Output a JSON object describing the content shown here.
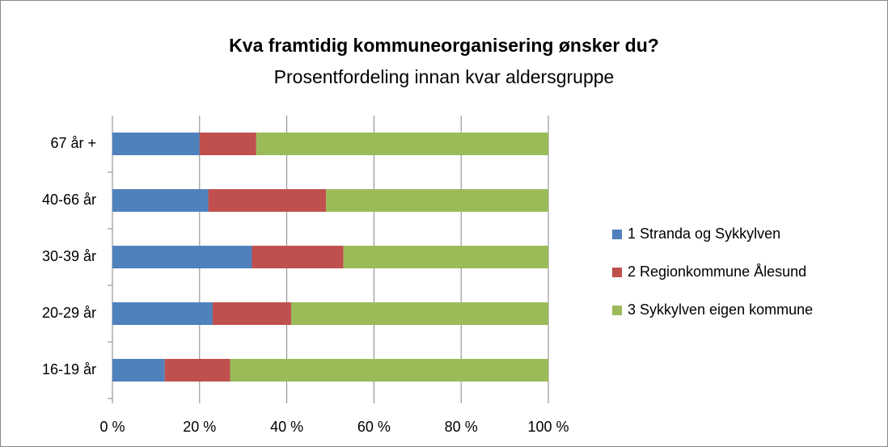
{
  "chart_data": {
    "type": "stacked_barh",
    "title": "Kva framtidig kommuneorganisering ønsker du?",
    "subtitle": "Prosentfordeling  innan kvar aldersgruppe",
    "categories": [
      "16-19 år",
      "20-29 år",
      "30-39 år",
      "40-66 år",
      "67 år +"
    ],
    "series": [
      {
        "name": "1 Stranda og Sykkylven",
        "color": "#4f81bd",
        "values": [
          12,
          23,
          32,
          22,
          20
        ]
      },
      {
        "name": "2 Regionkommune Ålesund",
        "color": "#c0504d",
        "values": [
          15,
          18,
          21,
          27,
          13
        ]
      },
      {
        "name": "3 Sykkylven eigen kommune",
        "color": "#9bbb59",
        "values": [
          73,
          59,
          47,
          51,
          67
        ]
      }
    ],
    "xlim": [
      0,
      100
    ],
    "xticks": [
      {
        "value": 0,
        "label": "0 %"
      },
      {
        "value": 20,
        "label": "20 %"
      },
      {
        "value": 40,
        "label": "40 %"
      },
      {
        "value": 60,
        "label": "60 %"
      },
      {
        "value": 80,
        "label": "80 %"
      },
      {
        "value": 100,
        "label": "100 %"
      }
    ],
    "grid": true,
    "legend": "right"
  }
}
